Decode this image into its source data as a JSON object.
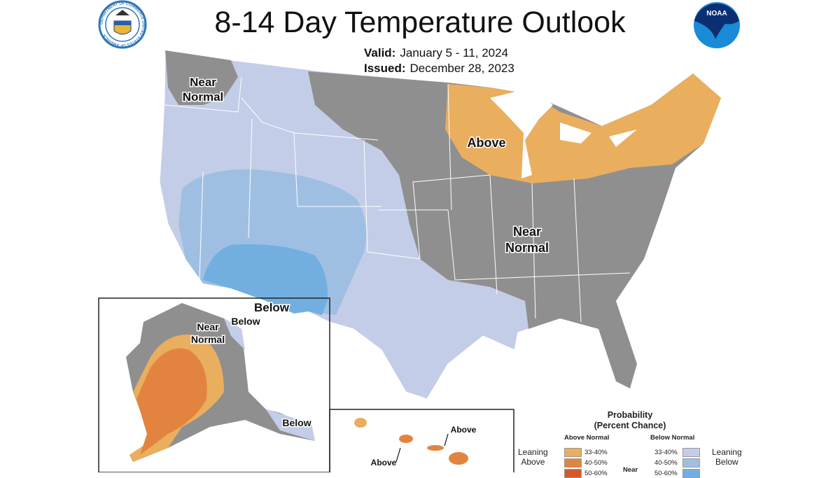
{
  "header": {
    "title": "8-14 Day Temperature Outlook",
    "valid_label": "Valid:",
    "valid_value": "January 5 - 11, 2024",
    "issued_label": "Issued:",
    "issued_value": "December 28, 2023",
    "left_logo": "Department of Commerce seal",
    "left_logo_text": "DEPARTMENT OF COMMERCE UNITED STATES OF AMERICA",
    "right_logo": "NOAA logo",
    "right_logo_text": "NOAA"
  },
  "map": {
    "colors": {
      "near_normal": "#8f8f8f",
      "leaning_below": "#c3cde8",
      "below_40_50": "#9fbfe2",
      "below_50_60": "#72afe0",
      "leaning_above": "#e9ae5e",
      "above_40_50": "#e2843f",
      "state_line": "#ffffff"
    },
    "labels": {
      "nw_near_normal": [
        "Near",
        "Normal"
      ],
      "above_great_lakes": "Above",
      "east_near_normal": [
        "Near",
        "Normal"
      ],
      "below_southwest": "Below",
      "ak_near_normal": [
        "Near",
        "Normal"
      ],
      "ak_below_north": "Below",
      "ak_below_southeast": "Below",
      "hi_above_1": "Above",
      "hi_above_2": "Above"
    }
  },
  "legend": {
    "title_line1": "Probability",
    "title_line2": "(Percent Chance)",
    "above_header": "Above Normal",
    "below_header": "Below Normal",
    "near_label": "Near",
    "leaning_above": [
      "Leaning",
      "Above"
    ],
    "leaning_below": [
      "Leaning",
      "Below"
    ],
    "above_ranges": [
      {
        "label": "33-40%",
        "color": "#e9ae5e"
      },
      {
        "label": "40-50%",
        "color": "#e2843f"
      },
      {
        "label": "50-60%",
        "color": "#d9582b"
      }
    ],
    "below_ranges": [
      {
        "label": "33-40%",
        "color": "#c3cde8"
      },
      {
        "label": "40-50%",
        "color": "#9fbfe2"
      },
      {
        "label": "50-60%",
        "color": "#72afe0"
      }
    ]
  }
}
